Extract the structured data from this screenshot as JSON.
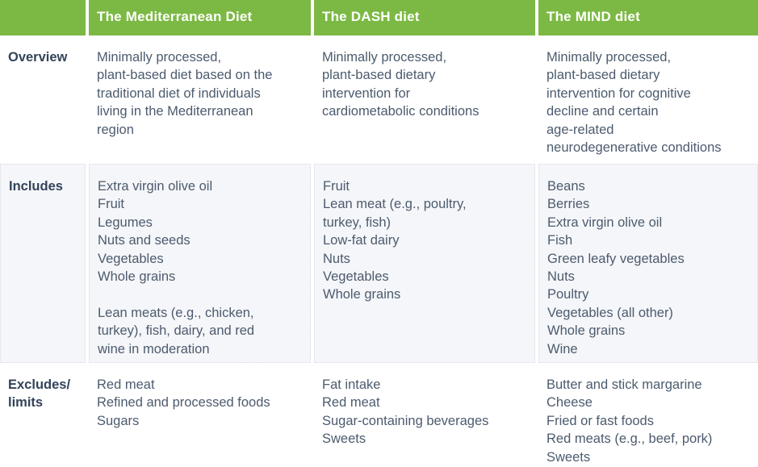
{
  "colors": {
    "header_green": "#7cb944",
    "header_text": "#ffffff",
    "row_label_text": "#33435a",
    "body_text": "#4c5b6e",
    "stripe_background": "#f5f6f9",
    "stripe_border": "#d9dae0",
    "page_background": "#ffffff"
  },
  "table": {
    "columns": [
      {
        "label": ""
      },
      {
        "label": "The Mediterranean Diet"
      },
      {
        "label": "The DASH diet"
      },
      {
        "label": "The MIND diet"
      }
    ],
    "rows": [
      {
        "label": "Overview",
        "cells": [
          "Minimally processed,\nplant-based diet based on the\ntraditional diet of individuals\nliving in the Mediterranean\nregion",
          "Minimally processed,\nplant-based dietary\nintervention for\ncardiometabolic conditions",
          "Minimally processed,\nplant-based dietary\nintervention for cognitive\ndecline and certain\nage-related\nneurodegenerative conditions"
        ]
      },
      {
        "label": "Includes",
        "cells": [
          "Extra virgin olive oil\nFruit\nLegumes\nNuts and seeds\nVegetables\nWhole grains\n\nLean meats (e.g., chicken,\nturkey), fish, dairy, and red\nwine in moderation",
          "Fruit\nLean meat (e.g., poultry,\nturkey, fish)\nLow-fat dairy\nNuts\nVegetables\nWhole grains",
          "Beans\nBerries\nExtra virgin olive oil\nFish\nGreen leafy vegetables\nNuts\nPoultry\nVegetables (all other)\nWhole grains\nWine"
        ]
      },
      {
        "label": "Excludes/\nlimits",
        "cells": [
          "Red meat\nRefined and processed foods\nSugars",
          "Fat intake\nRed meat\nSugar-containing beverages\nSweets",
          "Butter and stick margarine\nCheese\nFried or fast foods\nRed meats (e.g., beef, pork)\nSweets"
        ]
      }
    ]
  }
}
